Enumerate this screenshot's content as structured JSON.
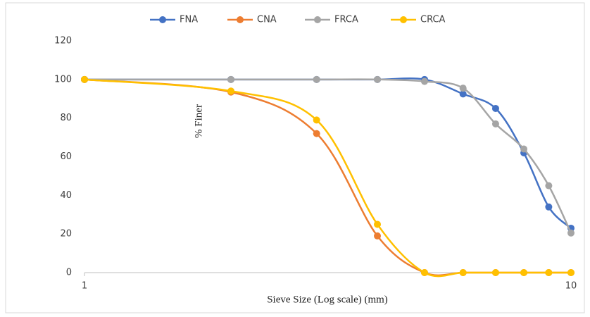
{
  "chart_data": {
    "type": "line",
    "x_label": "Sieve Size (Log scale) (mm)",
    "y_label": "% Finer",
    "x": [
      1,
      2,
      3,
      4,
      5,
      6,
      7,
      8,
      9,
      10
    ],
    "series": [
      {
        "name": "FNA",
        "color": "#4472c4",
        "values": [
          100,
          100,
          100,
          100,
          100,
          92.5,
          85,
          62,
          34,
          23
        ]
      },
      {
        "name": "CNA",
        "color": "#ed7d31",
        "values": [
          100,
          93.5,
          72,
          19,
          0,
          0,
          0,
          0,
          0,
          0
        ]
      },
      {
        "name": "FRCA",
        "color": "#a5a5a5",
        "values": [
          100,
          100,
          100,
          100,
          99,
          95.5,
          77,
          64,
          45,
          20.5
        ]
      },
      {
        "name": "CRCA",
        "color": "#ffc000",
        "values": [
          100,
          94,
          79,
          25,
          0,
          0,
          0,
          0,
          0,
          0
        ]
      }
    ],
    "xlim": [
      1,
      10
    ],
    "xticks": [
      1,
      10
    ],
    "xscale": "log",
    "ylim": [
      0,
      120
    ],
    "yticks": [
      0,
      20,
      40,
      60,
      80,
      100,
      120
    ],
    "grid": false,
    "smooth": true,
    "legend": "top"
  }
}
